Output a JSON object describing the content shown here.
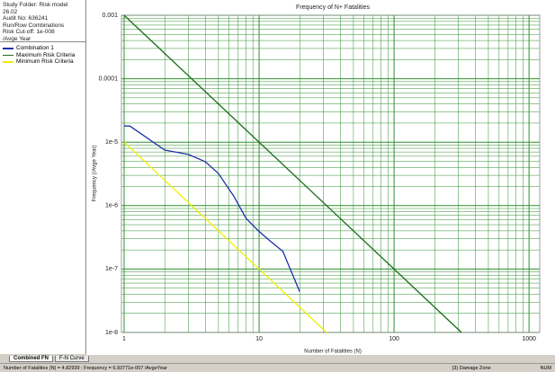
{
  "sidebar": {
    "info": [
      "Study Folder: Risk model",
      "26.02",
      "Audit No: 636241",
      "Run/Row Combinations",
      "Risk Cut-off: 1e-008",
      "/Avge Year"
    ]
  },
  "chart_data": {
    "type": "line",
    "title": "Frequency of N+ Fatalities",
    "x_label": "Number of Fatalities (N)",
    "y_label": "Frequency (/Avge Year)",
    "xlog": true,
    "ylog": true,
    "grid": true,
    "minor_grid": true,
    "xlim": [
      0.955,
      1200
    ],
    "ylim": [
      1e-08,
      0.001
    ],
    "xticks": [
      1,
      10,
      100,
      1000
    ],
    "yticks": [
      0.001,
      0.0001,
      {
        "value": 1e-05,
        "label": "1e-5"
      },
      {
        "value": 1e-06,
        "label": "1e-6"
      },
      {
        "value": 1e-07,
        "label": "1e-7"
      },
      {
        "value": 1e-08,
        "label": "1e-8"
      }
    ],
    "series": [
      {
        "name": "Combination 1",
        "color": "#1c2fa8",
        "x": [
          1,
          1.1,
          2,
          3,
          4,
          5,
          6.5,
          8,
          10,
          12,
          15,
          20
        ],
        "values": [
          1.8e-05,
          1.8e-05,
          7.5e-06,
          6.4e-06,
          4.9e-06,
          3.2e-06,
          1.4e-06,
          6.3e-07,
          3.9e-07,
          2.8e-07,
          1.9e-07,
          4.4e-08
        ]
      },
      {
        "name": "Maximum Risk Criteria",
        "color": "#1a6e1a",
        "x": [
          1,
          316
        ],
        "values": [
          0.001,
          1e-08
        ]
      },
      {
        "name": "Minimum Risk Criteria",
        "color": "#f2f000",
        "x": [
          1,
          31.6
        ],
        "values": [
          1e-05,
          1e-08
        ]
      }
    ]
  },
  "tabs": [
    "Combined FN",
    "F-N Curve"
  ],
  "status_bar": [
    "Number of Fatalities (N) = 4.82939 : Frequency = 6.93771e-007 /AvgeYear",
    "(3) Damage Zone",
    "NUM"
  ]
}
